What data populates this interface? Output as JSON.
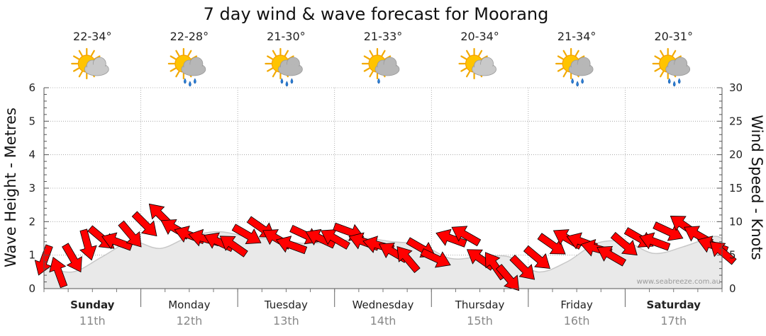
{
  "chart_data": {
    "type": "line",
    "title": "7 day wind & wave forecast for Moorang",
    "ylabel_left": "Wave Height - Metres",
    "ylabel_right": "Wind Speed - Knots",
    "ylim_left": [
      0,
      6
    ],
    "ylim_right": [
      0,
      30
    ],
    "yticks_left": [
      "0",
      "1",
      "2",
      "3",
      "4",
      "5",
      "6"
    ],
    "yticks_right": [
      "0",
      "5",
      "10",
      "15",
      "20",
      "25",
      "30"
    ],
    "days": [
      {
        "name": "Sunday",
        "date": "11th",
        "temp": "22-34°",
        "weather": "partly-cloudy",
        "bold": true
      },
      {
        "name": "Monday",
        "date": "12th",
        "temp": "22-28°",
        "weather": "showers",
        "bold": false
      },
      {
        "name": "Tuesday",
        "date": "13th",
        "temp": "21-30°",
        "weather": "showers",
        "bold": false
      },
      {
        "name": "Wednesday",
        "date": "14th",
        "temp": "21-33°",
        "weather": "light-shower",
        "bold": false
      },
      {
        "name": "Thursday",
        "date": "15th",
        "temp": "20-34°",
        "weather": "partly-cloudy",
        "bold": false
      },
      {
        "name": "Friday",
        "date": "16th",
        "temp": "21-34°",
        "weather": "showers",
        "bold": false
      },
      {
        "name": "Saturday",
        "date": "17th",
        "temp": "20-31°",
        "weather": "showers",
        "bold": true
      }
    ],
    "wave_series": {
      "name": "Wave Height (m)",
      "x_days": [
        0,
        0.3,
        0.6,
        0.9,
        1.2,
        1.5,
        1.8,
        2.1,
        2.4,
        2.7,
        3.0,
        3.3,
        3.6,
        3.9,
        4.2,
        4.5,
        4.8,
        5.1,
        5.4,
        5.7,
        6.0,
        6.3,
        6.6,
        6.9,
        7.0
      ],
      "values": [
        0.65,
        0.5,
        0.95,
        1.4,
        1.2,
        1.55,
        1.7,
        1.55,
        1.45,
        1.35,
        1.4,
        1.5,
        1.4,
        1.3,
        0.9,
        0.95,
        0.95,
        0.5,
        0.8,
        1.35,
        1.4,
        1.05,
        1.25,
        1.55,
        1.5
      ]
    },
    "wind_series": {
      "name": "Wind Speed (knots)",
      "x_days": [
        0,
        0.15,
        0.3,
        0.45,
        0.6,
        0.75,
        0.9,
        1.05,
        1.2,
        1.35,
        1.5,
        1.65,
        1.8,
        1.95,
        2.1,
        2.25,
        2.4,
        2.55,
        2.7,
        2.85,
        3.0,
        3.15,
        3.3,
        3.45,
        3.6,
        3.75,
        3.9,
        4.05,
        4.2,
        4.35,
        4.5,
        4.65,
        4.8,
        4.95,
        5.1,
        5.25,
        5.4,
        5.55,
        5.7,
        5.85,
        6.0,
        6.15,
        6.3,
        6.45,
        6.6,
        6.75,
        6.9,
        7.0
      ],
      "values": [
        4.2,
        2.5,
        4.5,
        6.5,
        7.5,
        7.0,
        8.0,
        9.5,
        11.0,
        9.0,
        8.0,
        7.5,
        7.0,
        6.5,
        8.0,
        9.0,
        7.5,
        6.5,
        8.0,
        7.5,
        7.5,
        8.5,
        7.0,
        6.5,
        5.5,
        4.5,
        6.0,
        4.5,
        7.5,
        8.0,
        4.5,
        3.5,
        1.5,
        3.0,
        4.5,
        6.5,
        7.5,
        7.0,
        6.0,
        5.0,
        6.5,
        7.5,
        7.0,
        8.5,
        9.5,
        8.0,
        6.5,
        5.5
      ],
      "directions_deg": [
        110,
        250,
        60,
        75,
        40,
        200,
        50,
        45,
        225,
        210,
        200,
        195,
        205,
        215,
        30,
        35,
        210,
        200,
        25,
        205,
        210,
        20,
        200,
        195,
        210,
        230,
        30,
        25,
        200,
        210,
        215,
        235,
        50,
        45,
        40,
        35,
        210,
        200,
        195,
        210,
        40,
        30,
        200,
        25,
        215,
        210,
        200,
        220
      ]
    },
    "watermark": "www.seabreeze.com.au",
    "grid": true
  },
  "colors": {
    "wave_fill": "#e9e9e9",
    "wave_line": "#c8c8c8",
    "arrow_fill": "#ff0000",
    "arrow_stroke": "#000000",
    "grid": "#9a9a9a"
  }
}
